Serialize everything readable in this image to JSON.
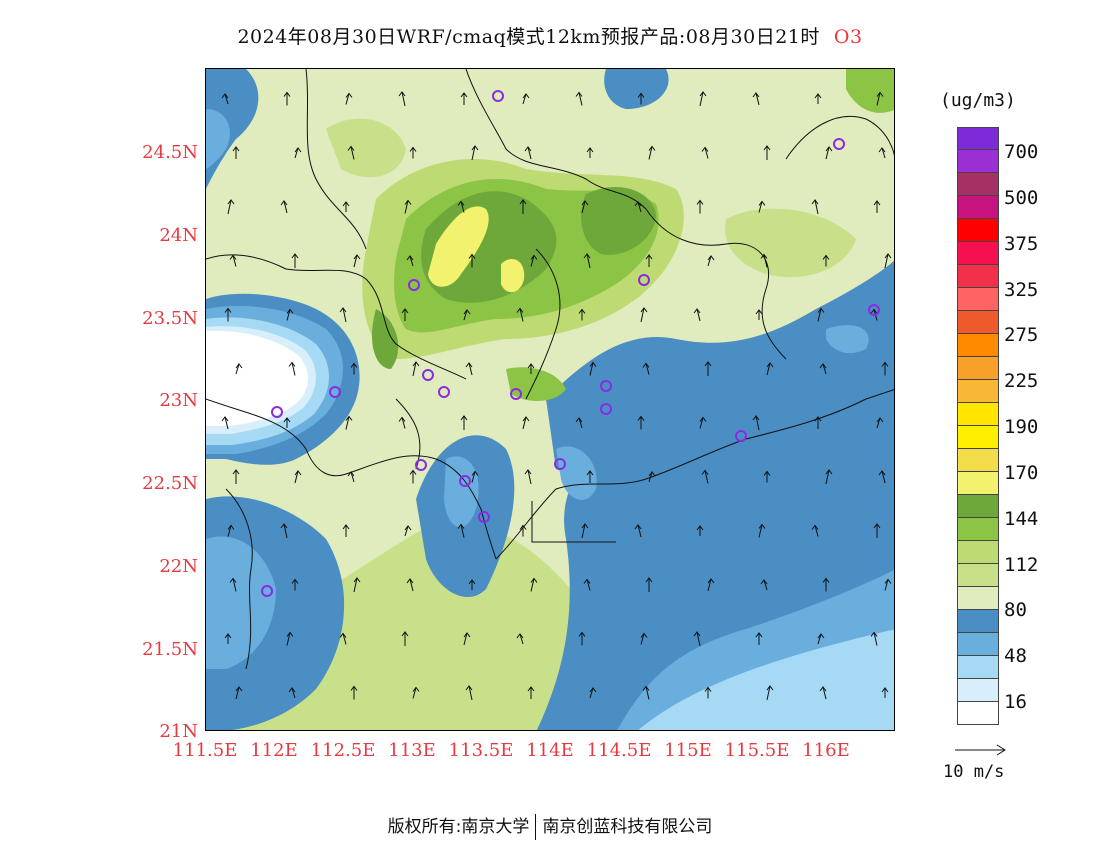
{
  "header": {
    "title": "2024年08月30日WRF/cmaq模式12km预报产品:08月30日21时",
    "pollutant": "O3"
  },
  "map": {
    "lat_labels": [
      "24.5N",
      "24N",
      "23.5N",
      "23N",
      "22.5N",
      "22N",
      "21.5N",
      "21N"
    ],
    "lon_labels": [
      "111.5E",
      "112E",
      "112.5E",
      "113E",
      "113.5E",
      "114E",
      "114.5E",
      "115E",
      "115.5E",
      "116E"
    ],
    "lat_values": [
      24.5,
      24.0,
      23.5,
      23.0,
      22.5,
      22.0,
      21.5,
      21.0
    ],
    "lon_values": [
      111.5,
      112.0,
      112.5,
      113.0,
      113.5,
      114.0,
      114.5,
      115.0,
      115.5,
      116.0
    ],
    "extent": {
      "lon_min": 111.5,
      "lon_max": 116.5,
      "lat_min": 21.0,
      "lat_max": 25.0
    },
    "wind_direction": "south-to-north",
    "station_marker_color": "#8a2be2",
    "station_count": 18
  },
  "legend": {
    "unit": "(ug/m3)",
    "tick_labels": [
      "700",
      "500",
      "375",
      "325",
      "275",
      "225",
      "190",
      "170",
      "144",
      "112",
      "80",
      "48",
      "16"
    ],
    "colors_top_to_bottom": [
      "#7d2ad8",
      "#9b2fd3",
      "#a63063",
      "#c7137d",
      "#ff0000",
      "#f5114f",
      "#f23049",
      "#ff6464",
      "#ee5a2c",
      "#ff8a00",
      "#f7a12a",
      "#f8b736",
      "#ffe600",
      "#fff000",
      "#f3dc4a",
      "#f2f26e",
      "#6fa83a",
      "#8cc446",
      "#bddb72",
      "#c9e08b",
      "#e0ebbe",
      "#4a8ec3",
      "#6aaede",
      "#a5d9f4",
      "#d9eefb",
      "#ffffff"
    ]
  },
  "wind_reference": {
    "label": "10 m/s"
  },
  "footer": {
    "copyright_left": "版权所有:南京大学",
    "copyright_right": "南京创蓝科技有限公司"
  }
}
